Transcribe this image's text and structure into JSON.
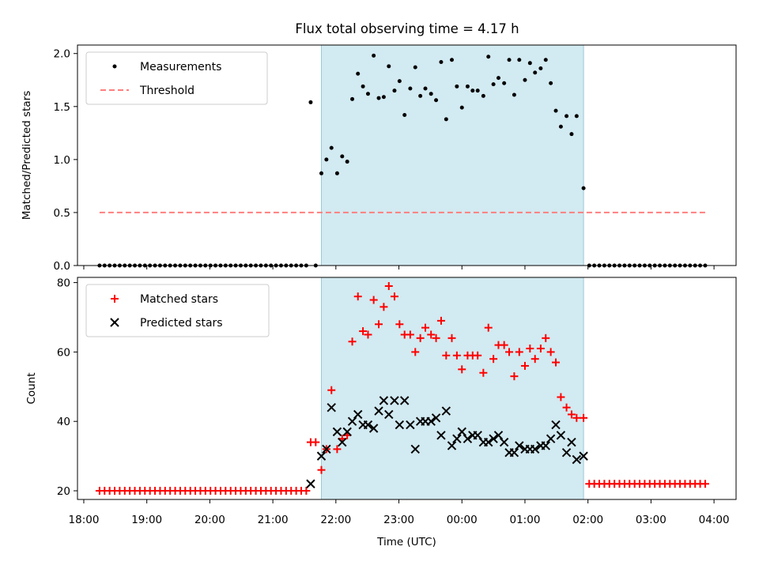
{
  "figure": {
    "title": "Flux total observing time = 4.17 h",
    "xlabel": "Time (UTC)",
    "x_ticks": [
      "18:00",
      "19:00",
      "20:00",
      "21:00",
      "22:00",
      "23:00",
      "00:00",
      "01:00",
      "02:00",
      "03:00",
      "04:00"
    ],
    "x_range_hours": [
      17.9,
      28.35
    ],
    "shaded_window_hours": [
      21.77,
      25.93
    ],
    "shade_color": "#add8e6",
    "measurement_color": "#000000",
    "threshold_color": "#ff7f7f",
    "matched_color": "#ff0000",
    "predicted_color": "#000000"
  },
  "chart_data": [
    {
      "type": "scatter",
      "title": "Flux total observing time = 4.17 h",
      "xlabel": "Time (UTC)",
      "ylabel": "Matched/Predicted stars",
      "ylim": [
        0,
        2.08
      ],
      "y_ticks": [
        "0.0",
        "0.5",
        "1.0",
        "1.5",
        "2.0"
      ],
      "grid": false,
      "legend_position": "top-left",
      "series": [
        {
          "name": "Measurements",
          "x": [
            18.25,
            18.33,
            18.41,
            18.49,
            18.57,
            18.65,
            18.73,
            18.81,
            18.89,
            18.97,
            19.05,
            19.13,
            19.21,
            19.29,
            19.37,
            19.45,
            19.53,
            19.61,
            19.69,
            19.77,
            19.85,
            19.93,
            20.01,
            20.09,
            20.17,
            20.25,
            20.33,
            20.41,
            20.49,
            20.57,
            20.65,
            20.73,
            20.81,
            20.89,
            20.97,
            21.05,
            21.13,
            21.21,
            21.29,
            21.37,
            21.45,
            21.53,
            21.6,
            21.68,
            21.77,
            21.85,
            21.93,
            22.02,
            22.1,
            22.18,
            22.26,
            22.35,
            22.43,
            22.51,
            22.6,
            22.68,
            22.76,
            22.84,
            22.93,
            23.01,
            23.09,
            23.18,
            23.26,
            23.34,
            23.42,
            23.51,
            23.59,
            23.67,
            23.75,
            23.84,
            23.92,
            24.0,
            24.09,
            24.17,
            24.25,
            24.34,
            24.42,
            24.5,
            24.58,
            24.67,
            24.75,
            24.83,
            24.91,
            25.0,
            25.08,
            25.16,
            25.25,
            25.33,
            25.41,
            25.49,
            25.57,
            25.66,
            25.74,
            25.82,
            25.93,
            26.02,
            26.1,
            26.18,
            26.26,
            26.34,
            26.42,
            26.5,
            26.58,
            26.66,
            26.74,
            26.82,
            26.9,
            26.98,
            27.06,
            27.14,
            27.22,
            27.3,
            27.38,
            27.46,
            27.54,
            27.62,
            27.7,
            27.78,
            27.86
          ],
          "y": [
            0,
            0,
            0,
            0,
            0,
            0,
            0,
            0,
            0,
            0,
            0,
            0,
            0,
            0,
            0,
            0,
            0,
            0,
            0,
            0,
            0,
            0,
            0,
            0,
            0,
            0,
            0,
            0,
            0,
            0,
            0,
            0,
            0,
            0,
            0,
            0,
            0,
            0,
            0,
            0,
            0,
            0,
            1.54,
            0,
            0.87,
            1.0,
            1.11,
            0.87,
            1.03,
            0.98,
            1.57,
            1.81,
            1.69,
            1.62,
            1.98,
            1.58,
            1.59,
            1.88,
            1.65,
            1.74,
            1.42,
            1.67,
            1.87,
            1.6,
            1.67,
            1.62,
            1.56,
            1.92,
            1.38,
            1.94,
            1.69,
            1.49,
            1.69,
            1.65,
            1.65,
            1.6,
            1.97,
            1.71,
            1.77,
            1.72,
            1.94,
            1.61,
            1.94,
            1.75,
            1.91,
            1.82,
            1.86,
            1.94,
            1.72,
            1.46,
            1.31,
            1.41,
            1.24,
            1.41,
            0.73,
            0,
            0,
            0,
            0,
            0,
            0,
            0,
            0,
            0,
            0,
            0,
            0,
            0,
            0,
            0,
            0,
            0,
            0,
            0,
            0,
            0,
            0,
            0,
            0
          ]
        },
        {
          "name": "Threshold",
          "x": [
            18.25,
            27.86
          ],
          "y": [
            0.5,
            0.5
          ]
        }
      ]
    },
    {
      "type": "scatter",
      "xlabel": "Time (UTC)",
      "ylabel": "Count",
      "ylim": [
        17.5,
        81.5
      ],
      "y_ticks": [
        "20",
        "40",
        "60",
        "80"
      ],
      "grid": false,
      "legend_position": "top-left",
      "series": [
        {
          "name": "Matched stars",
          "x": [
            18.25,
            18.33,
            18.41,
            18.49,
            18.57,
            18.65,
            18.73,
            18.81,
            18.89,
            18.97,
            19.05,
            19.13,
            19.21,
            19.29,
            19.37,
            19.45,
            19.53,
            19.61,
            19.69,
            19.77,
            19.85,
            19.93,
            20.01,
            20.09,
            20.17,
            20.25,
            20.33,
            20.41,
            20.49,
            20.57,
            20.65,
            20.73,
            20.81,
            20.89,
            20.97,
            21.05,
            21.13,
            21.21,
            21.29,
            21.37,
            21.45,
            21.53,
            21.6,
            21.68,
            21.77,
            21.85,
            21.93,
            22.02,
            22.1,
            22.18,
            22.26,
            22.35,
            22.43,
            22.51,
            22.6,
            22.68,
            22.76,
            22.84,
            22.93,
            23.01,
            23.09,
            23.18,
            23.26,
            23.34,
            23.42,
            23.51,
            23.59,
            23.67,
            23.75,
            23.84,
            23.92,
            24.0,
            24.09,
            24.17,
            24.25,
            24.34,
            24.42,
            24.5,
            24.58,
            24.67,
            24.75,
            24.83,
            24.91,
            25.0,
            25.08,
            25.16,
            25.25,
            25.33,
            25.41,
            25.49,
            25.57,
            25.66,
            25.74,
            25.82,
            25.93,
            26.02,
            26.1,
            26.18,
            26.26,
            26.34,
            26.42,
            26.5,
            26.58,
            26.66,
            26.74,
            26.82,
            26.9,
            26.98,
            27.06,
            27.14,
            27.22,
            27.3,
            27.38,
            27.46,
            27.54,
            27.62,
            27.7,
            27.78,
            27.86
          ],
          "y": [
            20,
            20,
            20,
            20,
            20,
            20,
            20,
            20,
            20,
            20,
            20,
            20,
            20,
            20,
            20,
            20,
            20,
            20,
            20,
            20,
            20,
            20,
            20,
            20,
            20,
            20,
            20,
            20,
            20,
            20,
            20,
            20,
            20,
            20,
            20,
            20,
            20,
            20,
            20,
            20,
            20,
            20,
            34,
            34,
            26,
            32,
            49,
            32,
            35,
            36,
            63,
            76,
            66,
            65,
            75,
            68,
            73,
            79,
            76,
            68,
            65,
            65,
            60,
            64,
            67,
            65,
            64,
            69,
            59,
            64,
            59,
            55,
            59,
            59,
            59,
            54,
            67,
            58,
            62,
            62,
            60,
            53,
            60,
            56,
            61,
            58,
            61,
            64,
            60,
            57,
            47,
            44,
            42,
            41,
            41,
            22,
            22,
            22,
            22,
            22,
            22,
            22,
            22,
            22,
            22,
            22,
            22,
            22,
            22,
            22,
            22,
            22,
            22,
            22,
            22,
            22,
            22,
            22,
            22
          ]
        },
        {
          "name": "Predicted stars",
          "x": [
            21.6,
            21.77,
            21.85,
            21.93,
            22.02,
            22.1,
            22.18,
            22.26,
            22.35,
            22.43,
            22.51,
            22.6,
            22.68,
            22.76,
            22.84,
            22.93,
            23.01,
            23.09,
            23.18,
            23.26,
            23.34,
            23.42,
            23.51,
            23.59,
            23.67,
            23.75,
            23.84,
            23.92,
            24.0,
            24.09,
            24.17,
            24.25,
            24.34,
            24.42,
            24.5,
            24.58,
            24.67,
            24.75,
            24.83,
            24.91,
            25.0,
            25.08,
            25.16,
            25.25,
            25.33,
            25.41,
            25.49,
            25.57,
            25.66,
            25.74,
            25.82,
            25.93
          ],
          "y": [
            22,
            30,
            32,
            44,
            37,
            34,
            37,
            40,
            42,
            39,
            39,
            38,
            43,
            46,
            42,
            46,
            39,
            46,
            39,
            32,
            40,
            40,
            40,
            41,
            36,
            43,
            33,
            35,
            37,
            35,
            36,
            36,
            34,
            34,
            35,
            36,
            34,
            31,
            31,
            33,
            32,
            32,
            32,
            33,
            33,
            35,
            39,
            36,
            31,
            34,
            29,
            30
          ]
        }
      ]
    }
  ]
}
